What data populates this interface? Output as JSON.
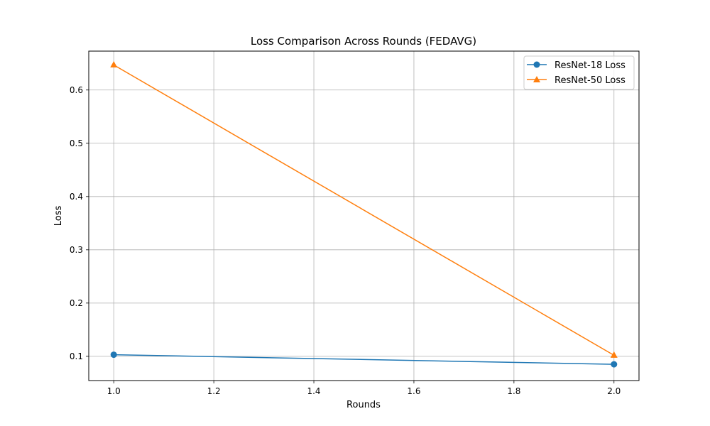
{
  "chart_data": {
    "type": "line",
    "title": "Loss Comparison Across Rounds (FEDAVG)",
    "xlabel": "Rounds",
    "ylabel": "Loss",
    "xlim": [
      0.95,
      2.05
    ],
    "ylim": [
      0.0545,
      0.673
    ],
    "xticks": [
      1.0,
      1.2,
      1.4,
      1.6,
      1.8,
      2.0
    ],
    "xtick_labels": [
      "1.0",
      "1.2",
      "1.4",
      "1.6",
      "1.8",
      "2.0"
    ],
    "yticks": [
      0.1,
      0.2,
      0.3,
      0.4,
      0.5,
      0.6
    ],
    "ytick_labels": [
      "0.1",
      "0.2",
      "0.3",
      "0.4",
      "0.5",
      "0.6"
    ],
    "grid": true,
    "legend_position": "top-right",
    "x": [
      1.0,
      2.0
    ],
    "series": [
      {
        "name": "ResNet-18 Loss",
        "values": [
          0.103,
          0.085
        ],
        "color": "#1f77b4",
        "marker": "circle"
      },
      {
        "name": "ResNet-50 Loss",
        "values": [
          0.647,
          0.102
        ],
        "color": "#ff7f0e",
        "marker": "triangle"
      }
    ]
  }
}
